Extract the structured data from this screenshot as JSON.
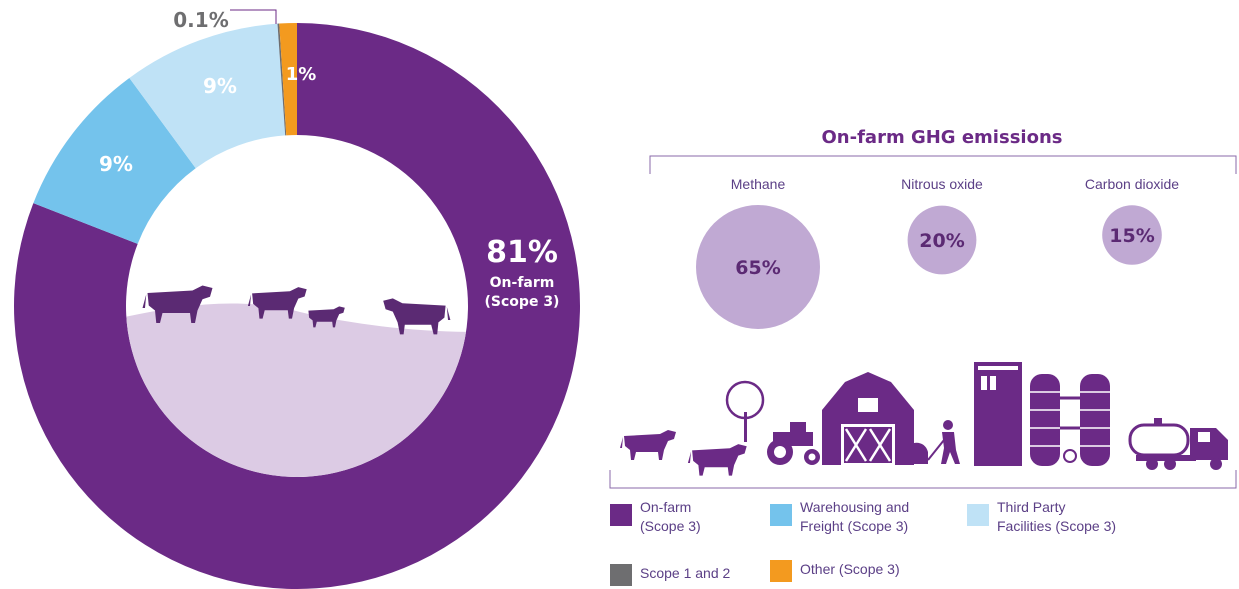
{
  "chart_data": [
    {
      "type": "pie",
      "style": "donut",
      "slices": [
        {
          "label": "On-farm (Scope 3)",
          "value": 81,
          "value_label": "81%",
          "color": "#6b2a86"
        },
        {
          "label": "Warehousing and Freight (Scope 3)",
          "value": 9,
          "value_label": "9%",
          "color": "#74c3ec"
        },
        {
          "label": "Third Party Facilities (Scope 3)",
          "value": 9,
          "value_label": "9%",
          "color": "#bfe2f6"
        },
        {
          "label": "Scope 1 and 2",
          "value": 0.1,
          "value_label": "0.1%",
          "color": "#6e6e70"
        },
        {
          "label": "Other (Scope 3)",
          "value": 1,
          "value_label": "1%",
          "color": "#f39a1f"
        }
      ],
      "annotation": {
        "value": "81%",
        "line1": "On-farm",
        "line2": "(Scope 3)"
      }
    },
    {
      "type": "bubble",
      "title": "On-farm GHG emissions",
      "categories": [
        "Methane",
        "Nitrous oxide",
        "Carbon dioxide"
      ],
      "values": [
        65,
        20,
        15
      ],
      "value_labels": [
        "65%",
        "20%",
        "15%"
      ],
      "color": "#c0a9d3"
    }
  ],
  "legend": [
    {
      "label": "On-farm\n(Scope 3)",
      "color": "#6b2a86"
    },
    {
      "label": "Warehousing and\nFreight (Scope 3)",
      "color": "#74c3ec"
    },
    {
      "label": "Third Party\nFacilities (Scope 3)",
      "color": "#bfe2f6"
    },
    {
      "label": "Scope 1 and 2",
      "color": "#6e6e70"
    },
    {
      "label": "Other (Scope 3)",
      "color": "#f39a1f"
    }
  ],
  "colors": {
    "brand_purple": "#6b2a86",
    "illustration_purple": "#5b2a73",
    "land": "#dccbe4",
    "text_purple": "#5b3f86"
  }
}
